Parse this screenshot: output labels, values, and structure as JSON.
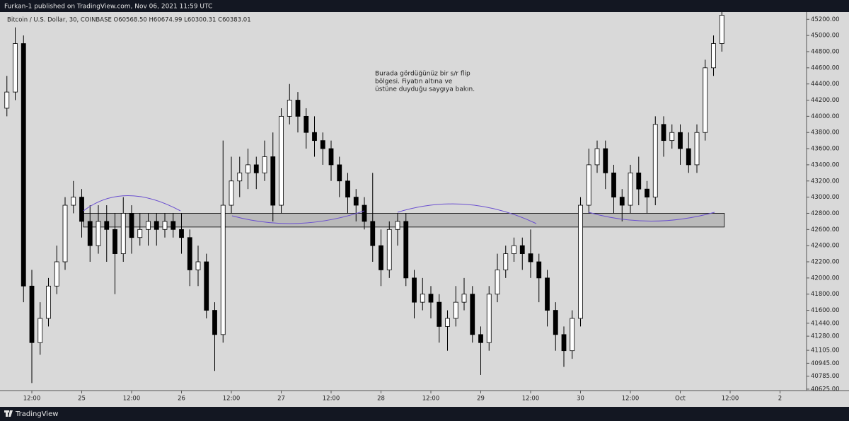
{
  "chart_data": {
    "type": "candlestick",
    "title": "Furkan-1 published on TradingView.com, Nov 06, 2021 11:59 UTC",
    "subtitle": "Bitcoin / U.S. Dollar, 30, COINBASE  O60568.50  H60674.99  L60300.31  C60383.01",
    "annotation": [
      "Burada gördüğünüz bir s/r flip",
      "bölgesi. Fiyatın altına ve",
      "üstüne duyduğu saygıya bakın."
    ],
    "brand": "TradingView",
    "background": "#d9d9d9",
    "up_color": "#ffffff",
    "down_color": "#000000",
    "wick_color": "#000000",
    "zone": {
      "x": [
        24.4,
        178.6
      ],
      "y": [
        42630,
        42800
      ],
      "color": "#b4b4b4"
    },
    "xlim": [
      4.34,
      198.38
    ],
    "xticks": [
      {
        "value": 12,
        "label": "12:00"
      },
      {
        "value": 24,
        "label": "25"
      },
      {
        "value": 36,
        "label": "12:00"
      },
      {
        "value": 48,
        "label": "26"
      },
      {
        "value": 60,
        "label": "12:00"
      },
      {
        "value": 72,
        "label": "27"
      },
      {
        "value": 84,
        "label": "12:00"
      },
      {
        "value": 96,
        "label": "28"
      },
      {
        "value": 108,
        "label": "12:00"
      },
      {
        "value": 120,
        "label": "29"
      },
      {
        "value": 132,
        "label": "12:00"
      },
      {
        "value": 144,
        "label": "30"
      },
      {
        "value": 156,
        "label": "12:00"
      },
      {
        "value": 168,
        "label": "Oct"
      },
      {
        "value": 180,
        "label": "12:00"
      },
      {
        "value": 192,
        "label": "2"
      }
    ],
    "ylim": [
      40607,
      45290
    ],
    "yticks": [
      {
        "value": 40625,
        "label": "40625.00"
      },
      {
        "value": 40785,
        "label": "40785.00"
      },
      {
        "value": 40945,
        "label": "40945.00"
      },
      {
        "value": 41105,
        "label": "41105.00"
      },
      {
        "value": 41280,
        "label": "41280.00"
      },
      {
        "value": 41440,
        "label": "41440.00"
      },
      {
        "value": 41600,
        "label": "41600.00"
      },
      {
        "value": 41800,
        "label": "41800.00"
      },
      {
        "value": 42000,
        "label": "42000.00"
      },
      {
        "value": 42200,
        "label": "42200.00"
      },
      {
        "value": 42400,
        "label": "42400.00"
      },
      {
        "value": 42600,
        "label": "42600.00"
      },
      {
        "value": 42800,
        "label": "42800.00"
      },
      {
        "value": 43000,
        "label": "43000.00"
      },
      {
        "value": 43200,
        "label": "43200.00"
      },
      {
        "value": 43400,
        "label": "43400.00"
      },
      {
        "value": 43600,
        "label": "43600.00"
      },
      {
        "value": 43800,
        "label": "43800.00"
      },
      {
        "value": 44000,
        "label": "44000.00"
      },
      {
        "value": 44200,
        "label": "44200.00"
      },
      {
        "value": 44400,
        "label": "44400.00"
      },
      {
        "value": 44600,
        "label": "44600.00"
      },
      {
        "value": 44800,
        "label": "44800.00"
      },
      {
        "value": 45000,
        "label": "45000.00"
      },
      {
        "value": 45200,
        "label": "45200.00"
      }
    ],
    "x": [
      6,
      8,
      10,
      12,
      14,
      16,
      18,
      20,
      22,
      24,
      26,
      28,
      30,
      32,
      34,
      36,
      38,
      40,
      42,
      44,
      46,
      48,
      50,
      52,
      54,
      56,
      58,
      60,
      62,
      64,
      66,
      68,
      70,
      72,
      74,
      76,
      78,
      80,
      82,
      84,
      86,
      88,
      90,
      92,
      94,
      96,
      98,
      100,
      102,
      104,
      106,
      108,
      110,
      112,
      114,
      116,
      118,
      120,
      122,
      124,
      126,
      128,
      130,
      132,
      134,
      136,
      138,
      140,
      142,
      144,
      146,
      148,
      150,
      152,
      154,
      156,
      158,
      160,
      162,
      164,
      166,
      168,
      170,
      172,
      174,
      176,
      178
    ],
    "open": [
      44100,
      44300,
      44900,
      41900,
      41200,
      41500,
      41900,
      42200,
      42900,
      43000,
      42700,
      42400,
      42700,
      42600,
      42300,
      42800,
      42500,
      42600,
      42700,
      42600,
      42700,
      42600,
      42500,
      42100,
      42200,
      41600,
      41300,
      42900,
      43200,
      43300,
      43400,
      43300,
      43500,
      42900,
      44000,
      44200,
      44000,
      43800,
      43700,
      43600,
      43400,
      43200,
      43000,
      42900,
      42700,
      42400,
      42100,
      42600,
      42700,
      42000,
      41700,
      41800,
      41700,
      41400,
      41500,
      41700,
      41800,
      41300,
      41200,
      41800,
      42100,
      42300,
      42400,
      42300,
      42200,
      42000,
      41600,
      41300,
      41100,
      41500,
      42900,
      43400,
      43600,
      43300,
      43000,
      42900,
      43300,
      43100,
      43000,
      43900,
      43700,
      43800,
      43600,
      43400,
      43800,
      44600,
      44900
    ],
    "high": [
      44500,
      45100,
      45000,
      42100,
      41700,
      42000,
      42400,
      43000,
      43200,
      43100,
      42900,
      42900,
      42900,
      42800,
      43000,
      42900,
      42800,
      42800,
      42800,
      42800,
      42800,
      42800,
      42600,
      42400,
      42300,
      41700,
      43700,
      43500,
      43500,
      43600,
      43500,
      43700,
      43800,
      44100,
      44400,
      44300,
      44100,
      44000,
      43800,
      43700,
      43500,
      43300,
      43100,
      43000,
      43300,
      42600,
      42700,
      42800,
      42800,
      42100,
      42000,
      41900,
      41800,
      41600,
      41900,
      42000,
      41900,
      41400,
      41900,
      42300,
      42400,
      42500,
      42500,
      42600,
      42300,
      42100,
      41700,
      41400,
      41600,
      43000,
      43600,
      43700,
      43700,
      43400,
      43100,
      43400,
      43500,
      43200,
      44000,
      44000,
      43900,
      43900,
      43800,
      43900,
      44700,
      45000,
      45290
    ],
    "low": [
      44000,
      44200,
      41700,
      40700,
      41050,
      41400,
      41800,
      42100,
      42800,
      42500,
      42200,
      42300,
      42200,
      41800,
      42200,
      42300,
      42400,
      42400,
      42400,
      42500,
      42500,
      42300,
      41900,
      41900,
      41500,
      40850,
      41200,
      42800,
      43000,
      43100,
      43100,
      43200,
      42700,
      42800,
      43900,
      43800,
      43600,
      43500,
      43400,
      43200,
      43000,
      42800,
      42700,
      42600,
      42200,
      41900,
      42000,
      42400,
      41900,
      41500,
      41600,
      41500,
      41200,
      41100,
      41400,
      41600,
      41200,
      40800,
      41100,
      41700,
      42000,
      42200,
      42100,
      42000,
      41700,
      41400,
      41100,
      40900,
      41000,
      41400,
      42800,
      43300,
      43100,
      42800,
      42700,
      42800,
      42900,
      42800,
      42900,
      43500,
      43600,
      43400,
      43300,
      43300,
      43700,
      44500,
      44800
    ],
    "close": [
      44300,
      44900,
      41900,
      41200,
      41500,
      41900,
      42200,
      42900,
      43000,
      42700,
      42400,
      42700,
      42600,
      42300,
      42800,
      42500,
      42600,
      42700,
      42600,
      42700,
      42600,
      42500,
      42100,
      42200,
      41600,
      41300,
      42900,
      43200,
      43300,
      43400,
      43300,
      43500,
      42900,
      44000,
      44200,
      44000,
      43800,
      43700,
      43600,
      43400,
      43200,
      43000,
      42900,
      42700,
      42400,
      42100,
      42600,
      42700,
      42000,
      41700,
      41800,
      41700,
      41400,
      41500,
      41700,
      41800,
      41300,
      41200,
      41800,
      42100,
      42300,
      42400,
      42300,
      42200,
      42000,
      41600,
      41300,
      41100,
      41500,
      42900,
      43400,
      43600,
      43300,
      43000,
      42900,
      43300,
      43100,
      43000,
      43900,
      43700,
      43800,
      43600,
      43400,
      43800,
      44600,
      44900,
      45250
    ]
  }
}
